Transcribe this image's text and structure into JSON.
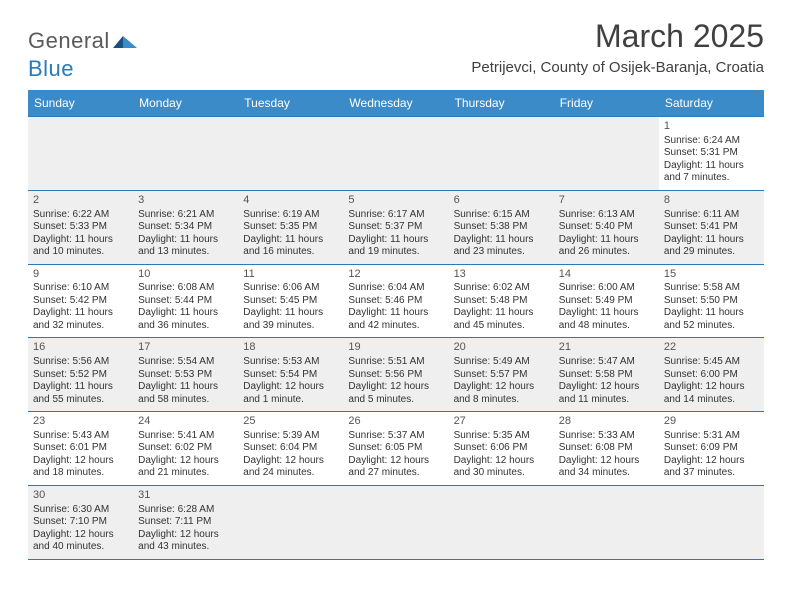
{
  "logo": {
    "general": "General",
    "blue": "Blue"
  },
  "title": "March 2025",
  "location": "Petrijevci, County of Osijek-Baranja, Croatia",
  "colors": {
    "header_bg": "#3b8bc8",
    "border": "#2a7ab9",
    "shaded": "#efefef",
    "text": "#333333",
    "title": "#404040"
  },
  "days_of_week": [
    "Sunday",
    "Monday",
    "Tuesday",
    "Wednesday",
    "Thursday",
    "Friday",
    "Saturday"
  ],
  "weeks": [
    [
      null,
      null,
      null,
      null,
      null,
      null,
      {
        "n": "1",
        "sr": "Sunrise: 6:24 AM",
        "ss": "Sunset: 5:31 PM",
        "dl1": "Daylight: 11 hours",
        "dl2": "and 7 minutes."
      }
    ],
    [
      {
        "n": "2",
        "sr": "Sunrise: 6:22 AM",
        "ss": "Sunset: 5:33 PM",
        "dl1": "Daylight: 11 hours",
        "dl2": "and 10 minutes."
      },
      {
        "n": "3",
        "sr": "Sunrise: 6:21 AM",
        "ss": "Sunset: 5:34 PM",
        "dl1": "Daylight: 11 hours",
        "dl2": "and 13 minutes."
      },
      {
        "n": "4",
        "sr": "Sunrise: 6:19 AM",
        "ss": "Sunset: 5:35 PM",
        "dl1": "Daylight: 11 hours",
        "dl2": "and 16 minutes."
      },
      {
        "n": "5",
        "sr": "Sunrise: 6:17 AM",
        "ss": "Sunset: 5:37 PM",
        "dl1": "Daylight: 11 hours",
        "dl2": "and 19 minutes."
      },
      {
        "n": "6",
        "sr": "Sunrise: 6:15 AM",
        "ss": "Sunset: 5:38 PM",
        "dl1": "Daylight: 11 hours",
        "dl2": "and 23 minutes."
      },
      {
        "n": "7",
        "sr": "Sunrise: 6:13 AM",
        "ss": "Sunset: 5:40 PM",
        "dl1": "Daylight: 11 hours",
        "dl2": "and 26 minutes."
      },
      {
        "n": "8",
        "sr": "Sunrise: 6:11 AM",
        "ss": "Sunset: 5:41 PM",
        "dl1": "Daylight: 11 hours",
        "dl2": "and 29 minutes."
      }
    ],
    [
      {
        "n": "9",
        "sr": "Sunrise: 6:10 AM",
        "ss": "Sunset: 5:42 PM",
        "dl1": "Daylight: 11 hours",
        "dl2": "and 32 minutes."
      },
      {
        "n": "10",
        "sr": "Sunrise: 6:08 AM",
        "ss": "Sunset: 5:44 PM",
        "dl1": "Daylight: 11 hours",
        "dl2": "and 36 minutes."
      },
      {
        "n": "11",
        "sr": "Sunrise: 6:06 AM",
        "ss": "Sunset: 5:45 PM",
        "dl1": "Daylight: 11 hours",
        "dl2": "and 39 minutes."
      },
      {
        "n": "12",
        "sr": "Sunrise: 6:04 AM",
        "ss": "Sunset: 5:46 PM",
        "dl1": "Daylight: 11 hours",
        "dl2": "and 42 minutes."
      },
      {
        "n": "13",
        "sr": "Sunrise: 6:02 AM",
        "ss": "Sunset: 5:48 PM",
        "dl1": "Daylight: 11 hours",
        "dl2": "and 45 minutes."
      },
      {
        "n": "14",
        "sr": "Sunrise: 6:00 AM",
        "ss": "Sunset: 5:49 PM",
        "dl1": "Daylight: 11 hours",
        "dl2": "and 48 minutes."
      },
      {
        "n": "15",
        "sr": "Sunrise: 5:58 AM",
        "ss": "Sunset: 5:50 PM",
        "dl1": "Daylight: 11 hours",
        "dl2": "and 52 minutes."
      }
    ],
    [
      {
        "n": "16",
        "sr": "Sunrise: 5:56 AM",
        "ss": "Sunset: 5:52 PM",
        "dl1": "Daylight: 11 hours",
        "dl2": "and 55 minutes."
      },
      {
        "n": "17",
        "sr": "Sunrise: 5:54 AM",
        "ss": "Sunset: 5:53 PM",
        "dl1": "Daylight: 11 hours",
        "dl2": "and 58 minutes."
      },
      {
        "n": "18",
        "sr": "Sunrise: 5:53 AM",
        "ss": "Sunset: 5:54 PM",
        "dl1": "Daylight: 12 hours",
        "dl2": "and 1 minute."
      },
      {
        "n": "19",
        "sr": "Sunrise: 5:51 AM",
        "ss": "Sunset: 5:56 PM",
        "dl1": "Daylight: 12 hours",
        "dl2": "and 5 minutes."
      },
      {
        "n": "20",
        "sr": "Sunrise: 5:49 AM",
        "ss": "Sunset: 5:57 PM",
        "dl1": "Daylight: 12 hours",
        "dl2": "and 8 minutes."
      },
      {
        "n": "21",
        "sr": "Sunrise: 5:47 AM",
        "ss": "Sunset: 5:58 PM",
        "dl1": "Daylight: 12 hours",
        "dl2": "and 11 minutes."
      },
      {
        "n": "22",
        "sr": "Sunrise: 5:45 AM",
        "ss": "Sunset: 6:00 PM",
        "dl1": "Daylight: 12 hours",
        "dl2": "and 14 minutes."
      }
    ],
    [
      {
        "n": "23",
        "sr": "Sunrise: 5:43 AM",
        "ss": "Sunset: 6:01 PM",
        "dl1": "Daylight: 12 hours",
        "dl2": "and 18 minutes."
      },
      {
        "n": "24",
        "sr": "Sunrise: 5:41 AM",
        "ss": "Sunset: 6:02 PM",
        "dl1": "Daylight: 12 hours",
        "dl2": "and 21 minutes."
      },
      {
        "n": "25",
        "sr": "Sunrise: 5:39 AM",
        "ss": "Sunset: 6:04 PM",
        "dl1": "Daylight: 12 hours",
        "dl2": "and 24 minutes."
      },
      {
        "n": "26",
        "sr": "Sunrise: 5:37 AM",
        "ss": "Sunset: 6:05 PM",
        "dl1": "Daylight: 12 hours",
        "dl2": "and 27 minutes."
      },
      {
        "n": "27",
        "sr": "Sunrise: 5:35 AM",
        "ss": "Sunset: 6:06 PM",
        "dl1": "Daylight: 12 hours",
        "dl2": "and 30 minutes."
      },
      {
        "n": "28",
        "sr": "Sunrise: 5:33 AM",
        "ss": "Sunset: 6:08 PM",
        "dl1": "Daylight: 12 hours",
        "dl2": "and 34 minutes."
      },
      {
        "n": "29",
        "sr": "Sunrise: 5:31 AM",
        "ss": "Sunset: 6:09 PM",
        "dl1": "Daylight: 12 hours",
        "dl2": "and 37 minutes."
      }
    ],
    [
      {
        "n": "30",
        "sr": "Sunrise: 6:30 AM",
        "ss": "Sunset: 7:10 PM",
        "dl1": "Daylight: 12 hours",
        "dl2": "and 40 minutes."
      },
      {
        "n": "31",
        "sr": "Sunrise: 6:28 AM",
        "ss": "Sunset: 7:11 PM",
        "dl1": "Daylight: 12 hours",
        "dl2": "and 43 minutes."
      },
      null,
      null,
      null,
      null,
      null
    ]
  ]
}
